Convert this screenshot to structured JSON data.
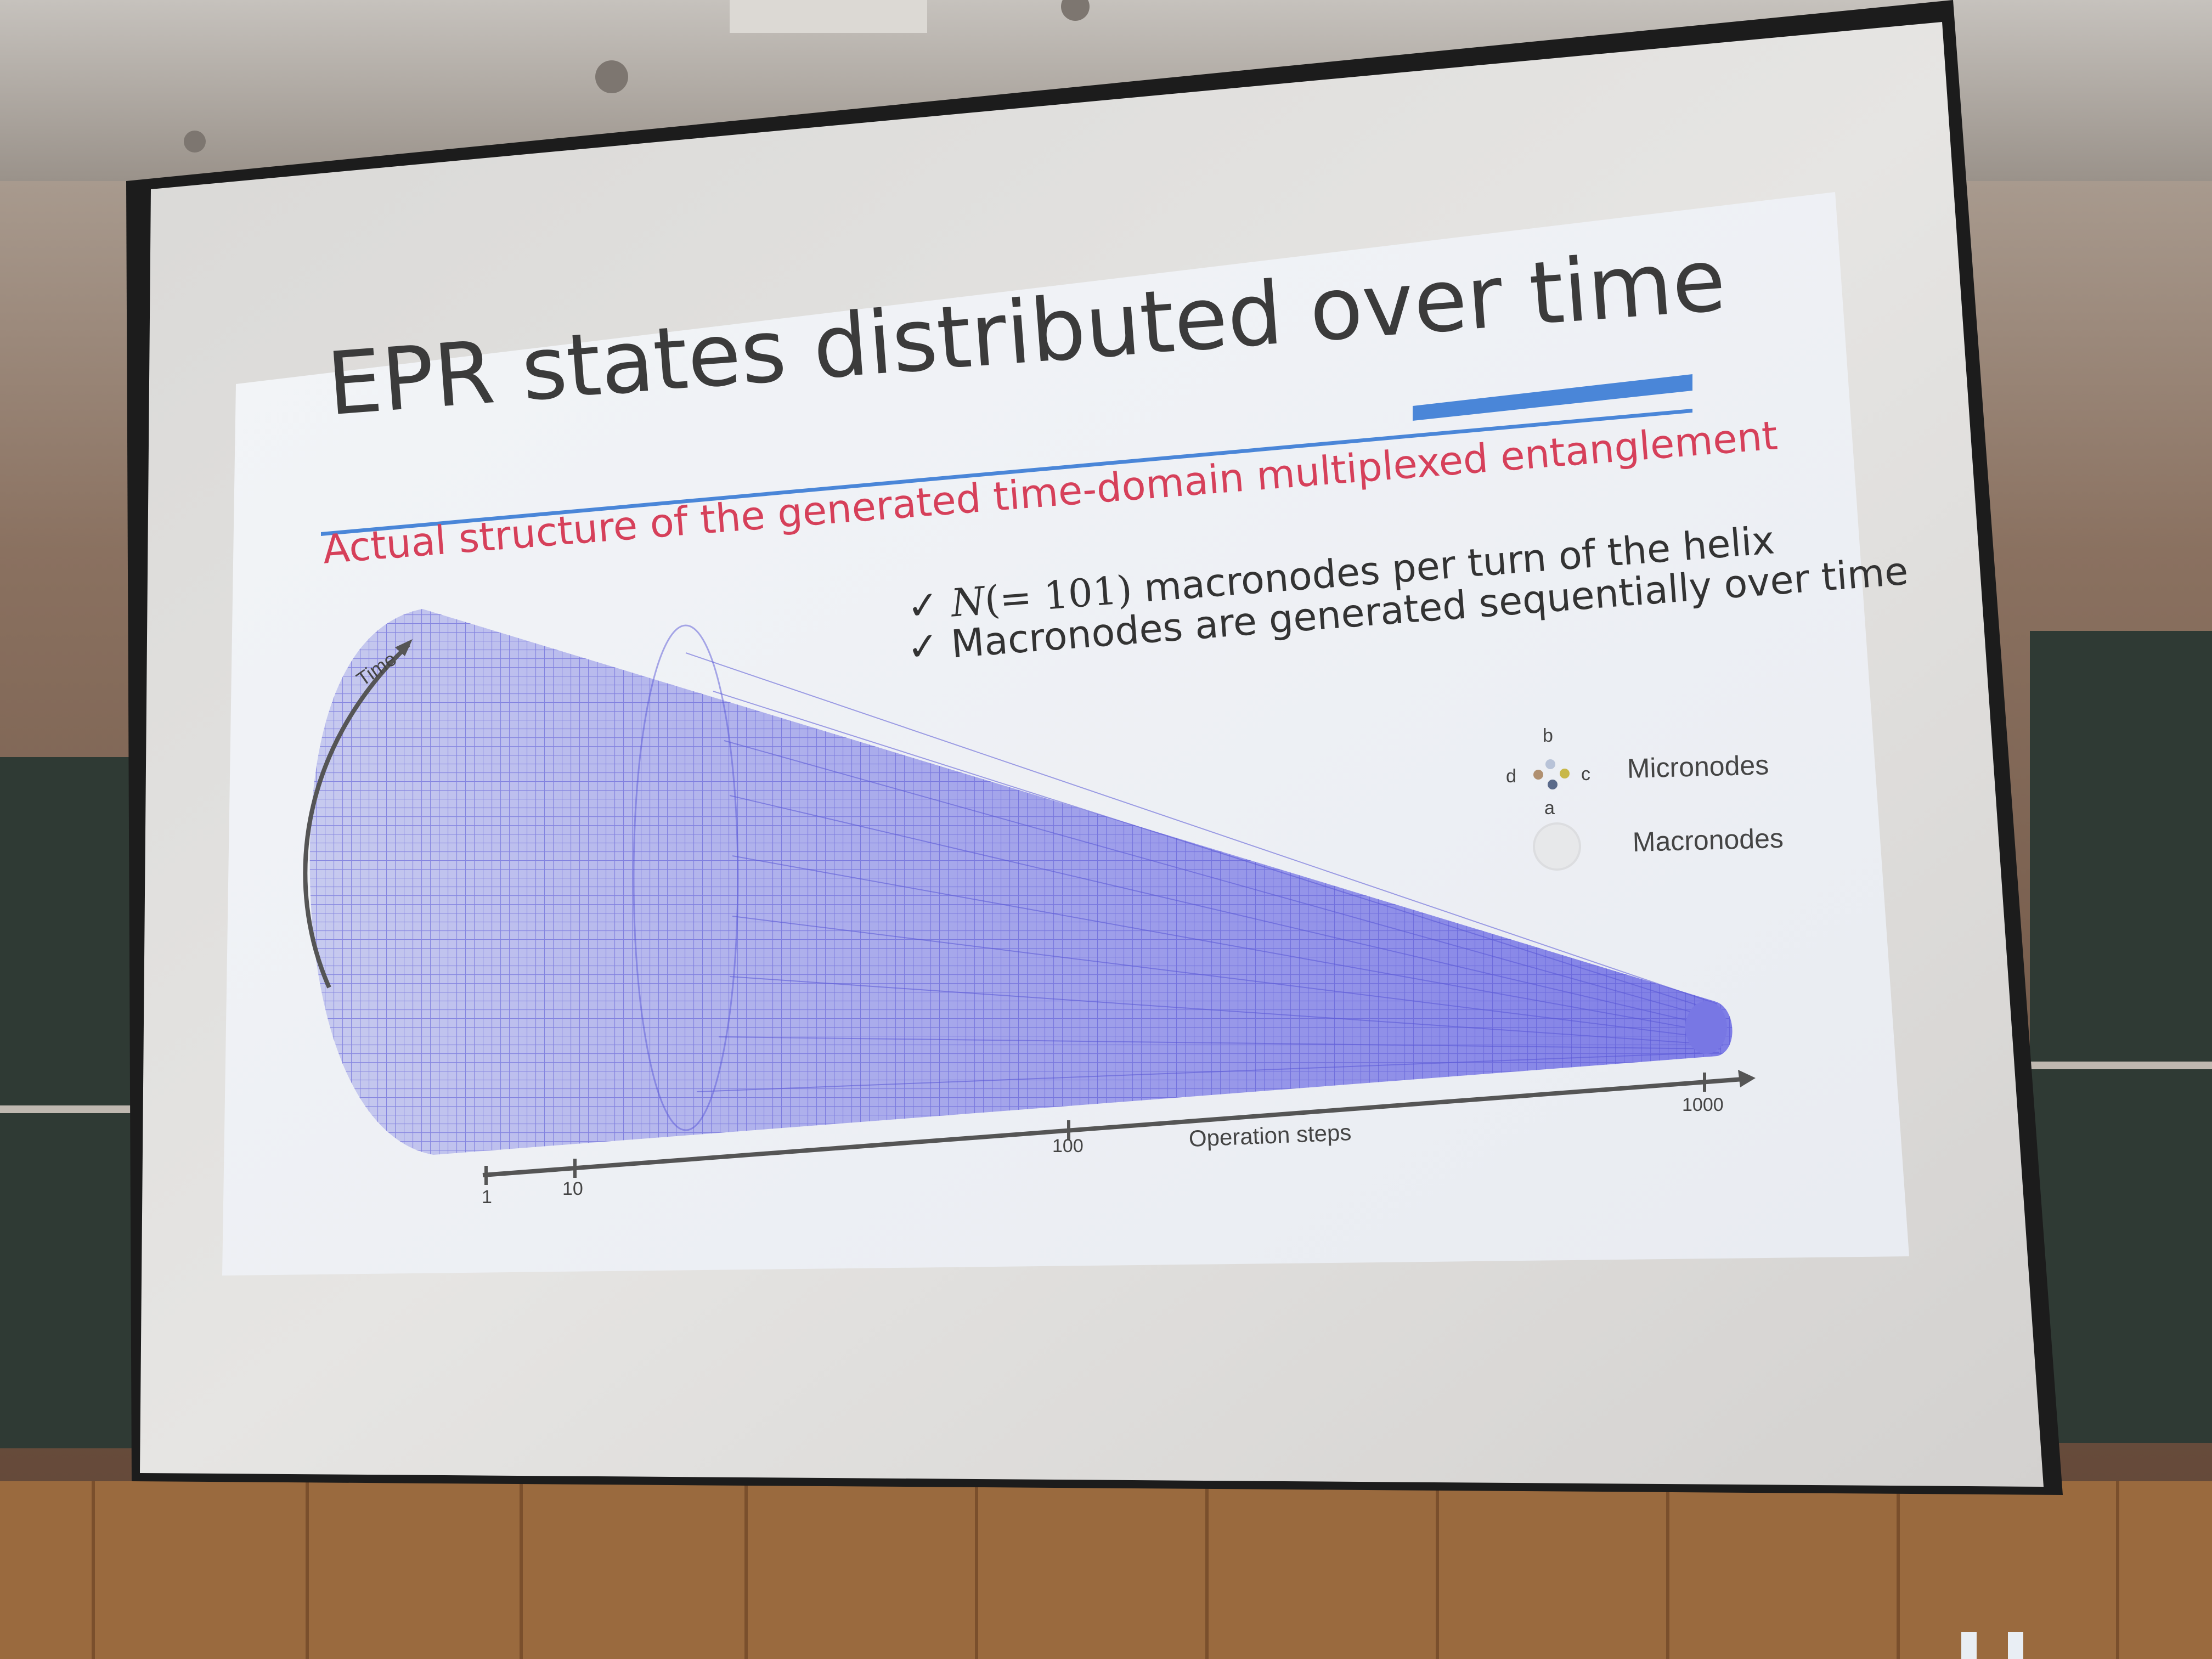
{
  "slide": {
    "title": "EPR states distributed over time",
    "subtitle": "Actual structure of the generated time-domain multiplexed entanglement",
    "bullets": [
      {
        "check": "✓",
        "var": "N",
        "math": "(= 101)",
        "rest": " macronodes per turn of the helix"
      },
      {
        "check": "✓",
        "text": "Macronodes are generated sequentially over time"
      }
    ],
    "legend": {
      "micronodes_label": "Micronodes",
      "macronodes_label": "Macronodes",
      "letters": {
        "a": "a",
        "b": "b",
        "c": "c",
        "d": "d"
      }
    },
    "axis": {
      "x_label": "Operation steps",
      "time_label": "Time",
      "ticks": [
        "1",
        "10",
        "100",
        "1000"
      ]
    },
    "colors": {
      "title_text": "#3b3b3b",
      "subtitle_text": "#d6405a",
      "accent_bar": "#4a86d8",
      "mesh": "#5a58d8",
      "slide_bg": "#f1f3f6",
      "screen": "#e2e1e0"
    }
  }
}
